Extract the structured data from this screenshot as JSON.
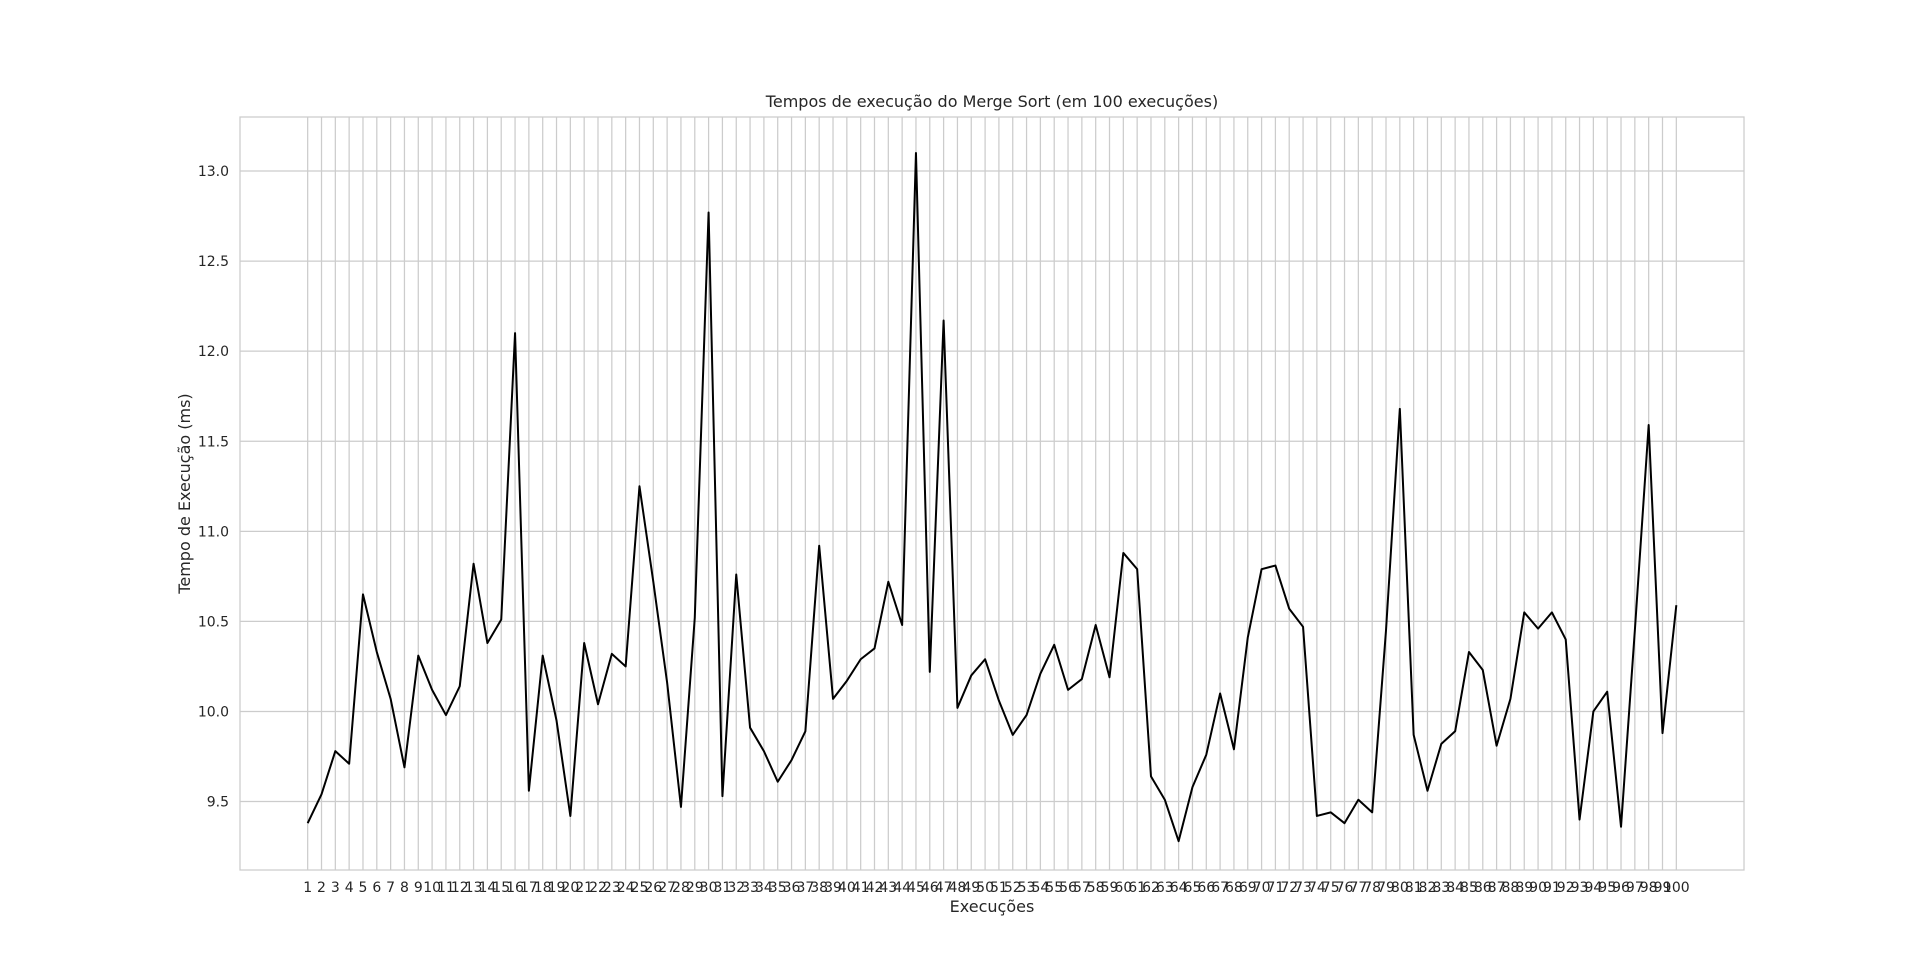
{
  "chart_data": {
    "type": "line",
    "title": "Tempos de execução do Merge Sort (em 100 execuções)",
    "xlabel": "Execuções",
    "ylabel": "Tempo de Execução (ms)",
    "ylim": [
      9.12,
      13.3
    ],
    "yticks": [
      9.5,
      10.0,
      10.5,
      11.0,
      11.5,
      12.0,
      12.5,
      13.0
    ],
    "grid": true,
    "line_color": "#000000",
    "grid_color": "#cccccc",
    "x": [
      1,
      2,
      3,
      4,
      5,
      6,
      7,
      8,
      9,
      10,
      11,
      12,
      13,
      14,
      15,
      16,
      17,
      18,
      19,
      20,
      21,
      22,
      23,
      24,
      25,
      26,
      27,
      28,
      29,
      30,
      31,
      32,
      33,
      34,
      35,
      36,
      37,
      38,
      39,
      40,
      41,
      42,
      43,
      44,
      45,
      46,
      47,
      48,
      49,
      50,
      51,
      52,
      53,
      54,
      55,
      56,
      57,
      58,
      59,
      60,
      61,
      62,
      63,
      64,
      65,
      66,
      67,
      68,
      69,
      70,
      71,
      72,
      73,
      74,
      75,
      76,
      77,
      78,
      79,
      80,
      81,
      82,
      83,
      84,
      85,
      86,
      87,
      88,
      89,
      90,
      91,
      92,
      93,
      94,
      95,
      96,
      97,
      98,
      99,
      100
    ],
    "series": [
      {
        "values": [
          9.38,
          9.54,
          9.78,
          9.71,
          10.65,
          10.33,
          10.07,
          9.69,
          10.31,
          10.12,
          9.98,
          10.14,
          10.82,
          10.38,
          10.51,
          12.1,
          9.56,
          10.31,
          9.95,
          9.42,
          10.38,
          10.04,
          10.32,
          10.25,
          11.25,
          10.72,
          10.16,
          9.47,
          10.52,
          12.77,
          9.53,
          10.76,
          9.91,
          9.78,
          9.61,
          9.73,
          9.89,
          10.92,
          10.07,
          10.17,
          10.29,
          10.35,
          10.72,
          10.48,
          13.1,
          10.22,
          12.17,
          10.02,
          10.2,
          10.29,
          10.06,
          9.87,
          9.98,
          10.21,
          10.37,
          10.12,
          10.18,
          10.48,
          10.19,
          10.88,
          10.79,
          9.64,
          9.51,
          9.28,
          9.58,
          9.76,
          10.1,
          9.79,
          10.41,
          10.79,
          10.81,
          10.57,
          10.47,
          9.42,
          9.44,
          9.38,
          9.51,
          9.44,
          10.45,
          11.68,
          9.87,
          9.56,
          9.82,
          9.89,
          10.33,
          10.23,
          9.81,
          10.07,
          10.55,
          10.46,
          10.55,
          10.4,
          9.4,
          10.0,
          10.11,
          9.36,
          10.45,
          11.59,
          9.88,
          10.59
        ]
      }
    ]
  }
}
